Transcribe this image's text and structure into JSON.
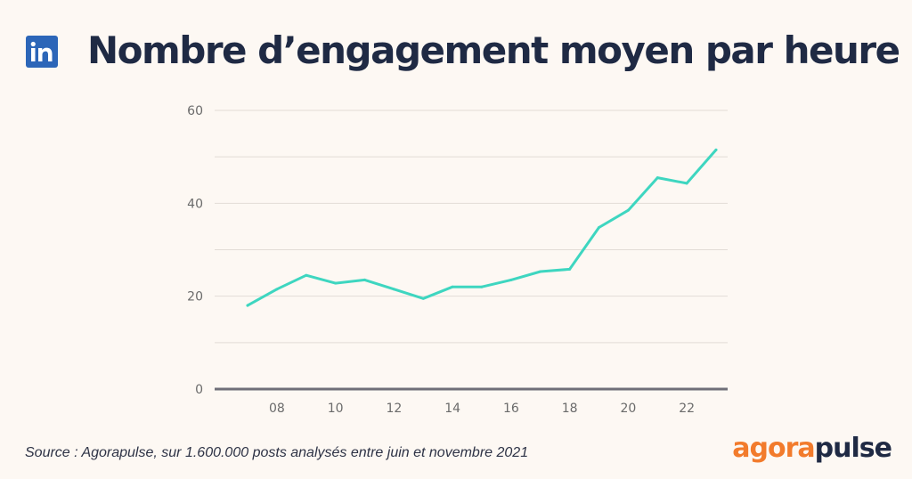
{
  "header": {
    "title": "Nombre d’engagement moyen par heure",
    "logo_icon": "linkedin-icon",
    "logo_text": "in"
  },
  "footer": {
    "source": "Source : Agorapulse, sur 1.600.000 posts analysés entre juin et novembre 2021",
    "brand_part1": "agora",
    "brand_part2": "pulse"
  },
  "colors": {
    "line": "#3ed6c0",
    "grid": "#e2dcd6",
    "axis": "#6f6f78",
    "title": "#1f2a44",
    "brand_orange": "#f27b2c",
    "linkedin_blue": "#2c66b8",
    "background": "#fdf8f3"
  },
  "chart_data": {
    "type": "line",
    "title": "Nombre d’engagement moyen par heure",
    "xlabel": "",
    "ylabel": "",
    "x": [
      7,
      8,
      9,
      10,
      11,
      12,
      13,
      14,
      15,
      16,
      17,
      18,
      19,
      20,
      21,
      22,
      23
    ],
    "values": [
      18,
      21.5,
      24.5,
      22.8,
      23.5,
      21.5,
      19.5,
      22,
      22,
      23.5,
      25.3,
      25.8,
      34.8,
      38.5,
      45.5,
      44.3,
      51.5
    ],
    "xticks": [
      8,
      10,
      12,
      14,
      16,
      18,
      20,
      22
    ],
    "xtick_labels": [
      "08",
      "10",
      "12",
      "14",
      "16",
      "18",
      "20",
      "22"
    ],
    "yticks": [
      0,
      20,
      40,
      60
    ],
    "ytick_labels": [
      "0",
      "20",
      "40",
      "60"
    ],
    "ylim": [
      0,
      60
    ],
    "xlim": [
      6,
      24
    ],
    "grid": true,
    "legend": "none"
  }
}
